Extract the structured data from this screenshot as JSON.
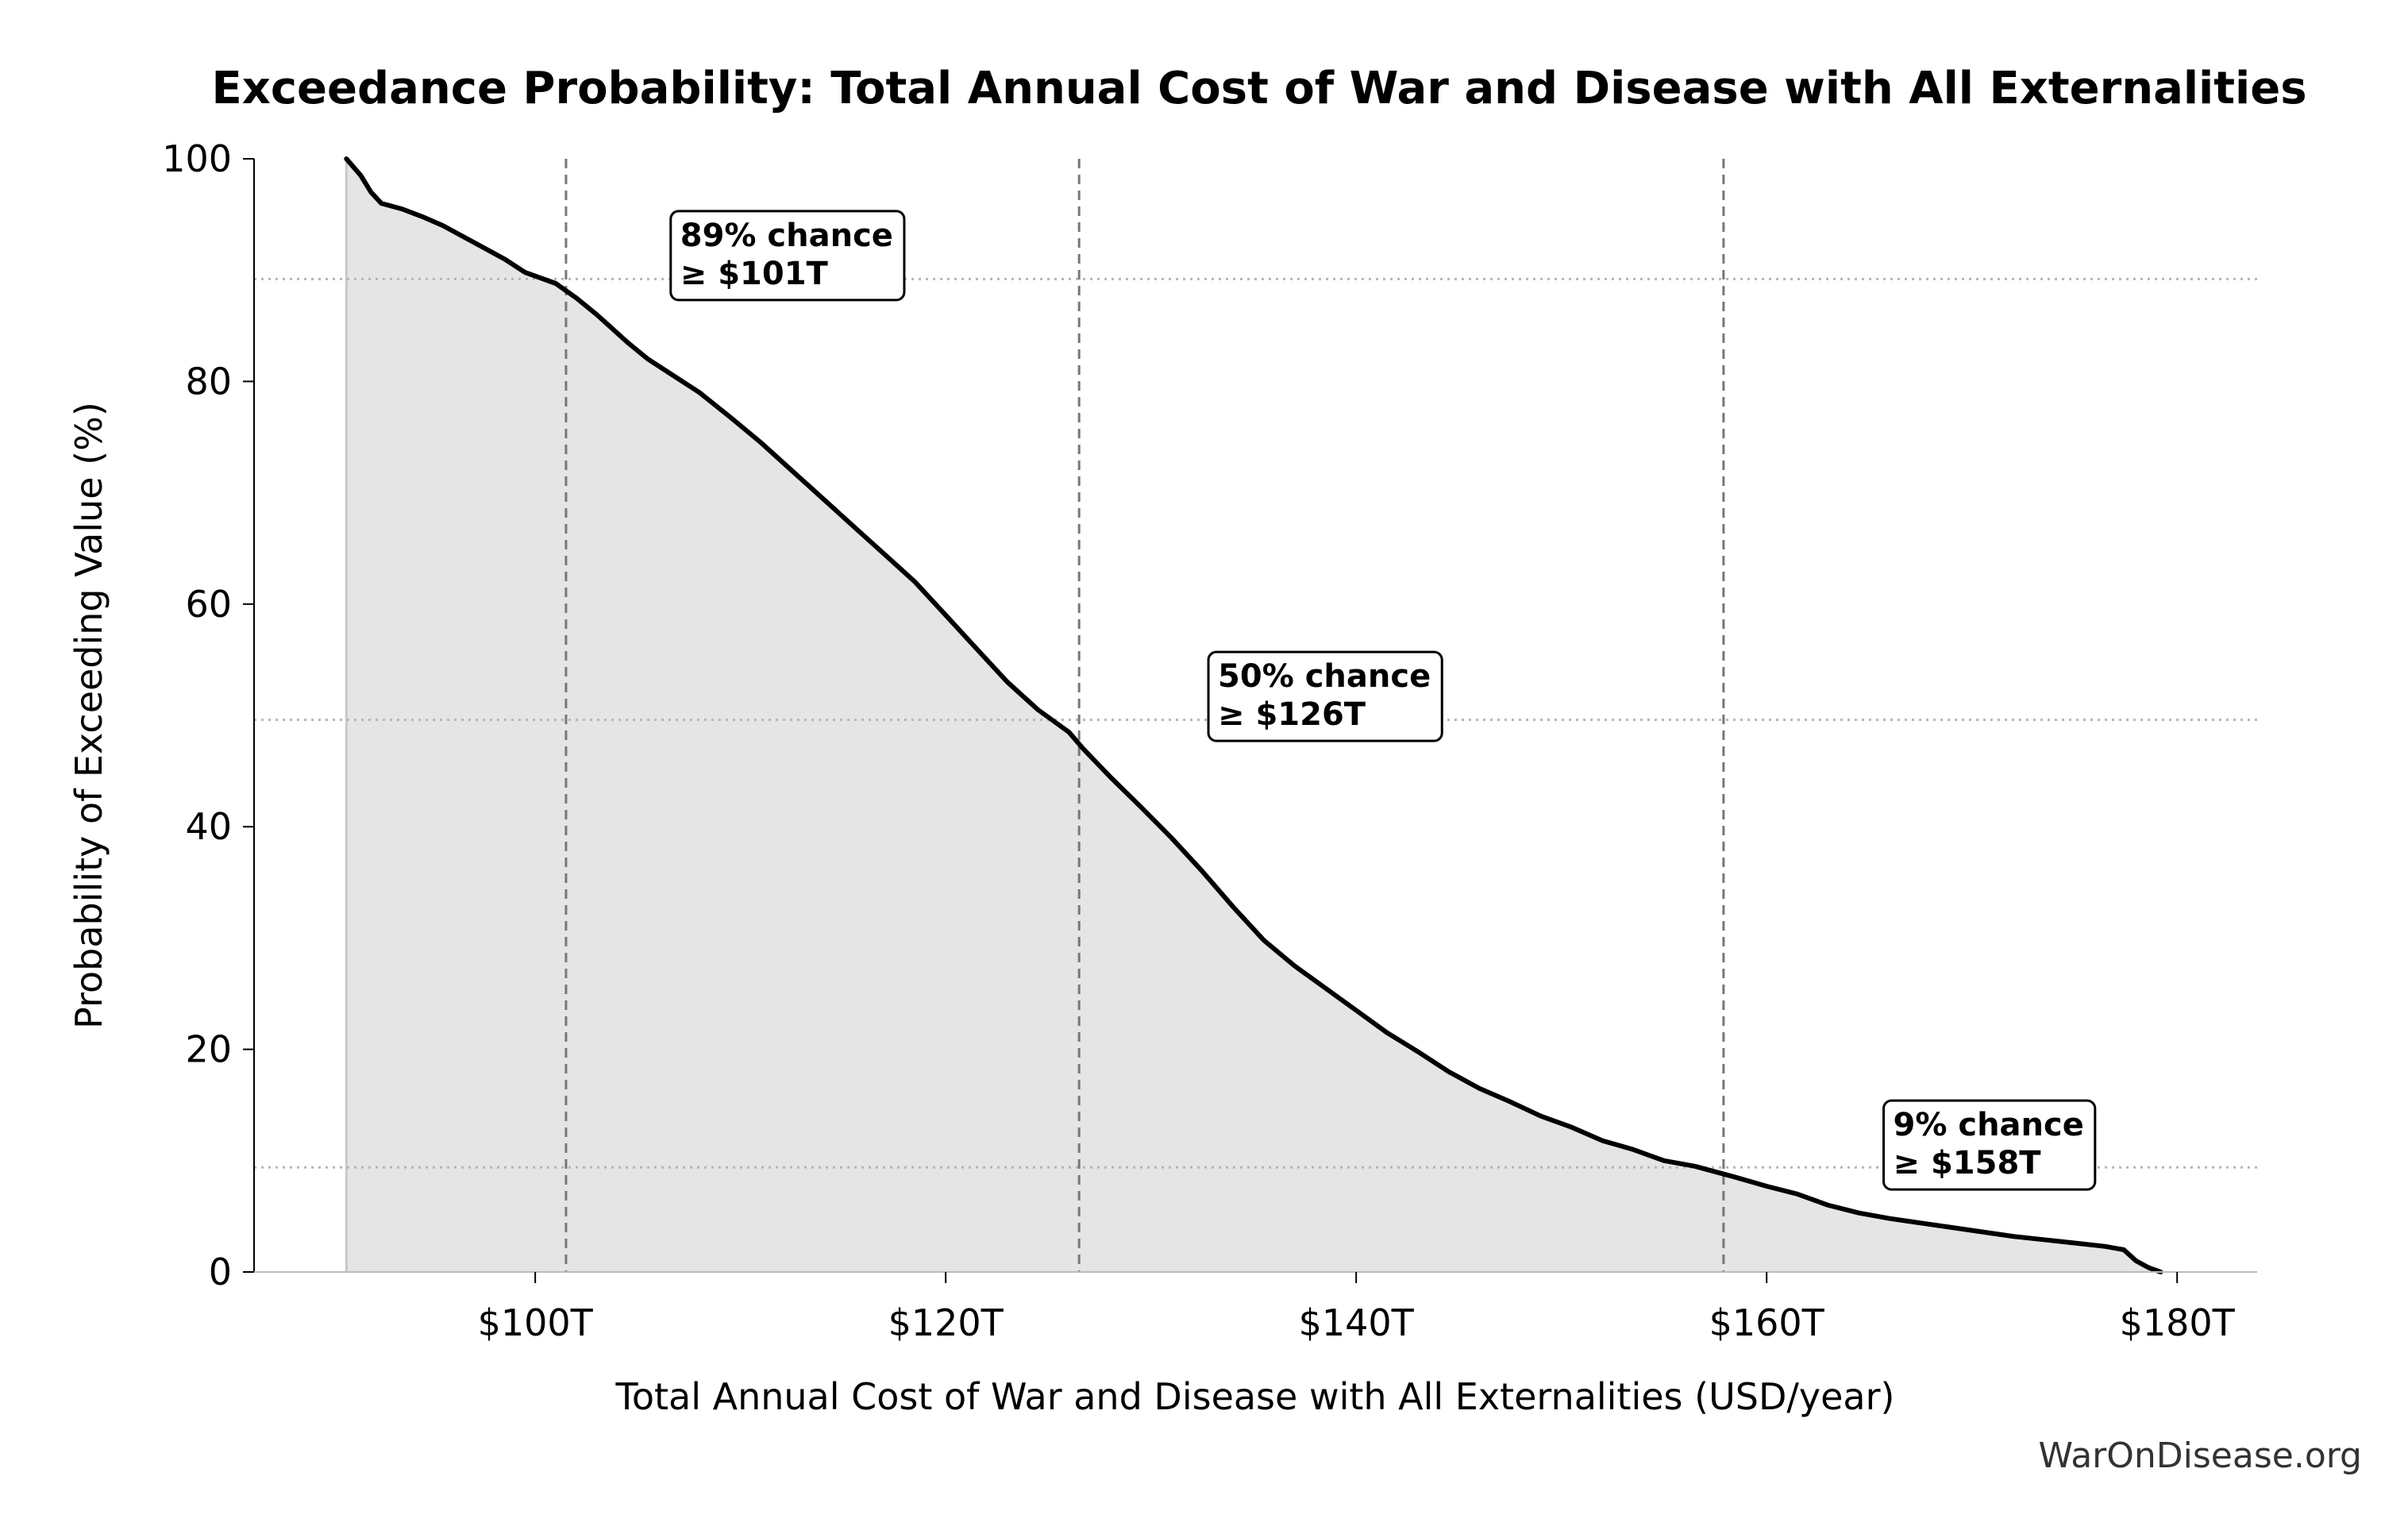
{
  "chart_data": {
    "type": "area",
    "title": "Exceedance Probability: Total Annual Cost of War and Disease with All Externalities",
    "xlabel": "Total Annual Cost of War and Disease with All Externalities (USD/year)",
    "ylabel": "Probability of Exceeding Value (%)",
    "xlim": [
      86.3,
      183.9
    ],
    "ylim": [
      0,
      100
    ],
    "x_ticks": [
      {
        "value": 100,
        "label": "$100T"
      },
      {
        "value": 120,
        "label": "$120T"
      },
      {
        "value": 140,
        "label": "$140T"
      },
      {
        "value": 160,
        "label": "$160T"
      },
      {
        "value": 180,
        "label": "$180T"
      }
    ],
    "y_ticks": [
      {
        "value": 0,
        "label": "0"
      },
      {
        "value": 20,
        "label": "20"
      },
      {
        "value": 40,
        "label": "40"
      },
      {
        "value": 60,
        "label": "60"
      },
      {
        "value": 80,
        "label": "80"
      },
      {
        "value": 100,
        "label": "100"
      }
    ],
    "series": [
      {
        "x": [
          90.8,
          91.5,
          92.0,
          92.5,
          93.5,
          94.5,
          95.5,
          97.0,
          98.5,
          99.5,
          101.0,
          102.0,
          103.0,
          104.5,
          105.5,
          106.5,
          108.0,
          109.5,
          111.0,
          112.5,
          114.0,
          115.5,
          117.0,
          118.5,
          120.0,
          121.5,
          123.0,
          124.5,
          126.0,
          126.7,
          128.0,
          129.5,
          131.0,
          132.5,
          134.0,
          135.5,
          137.0,
          138.5,
          140.0,
          141.5,
          143.0,
          144.5,
          146.0,
          147.5,
          149.0,
          150.5,
          152.0,
          153.5,
          155.0,
          156.5,
          157.5,
          158.5,
          160.0,
          161.5,
          163.0,
          164.5,
          166.0,
          167.5,
          169.0,
          170.5,
          172.0,
          173.5,
          175.0,
          176.5,
          177.4,
          178.0,
          178.6,
          179.2
        ],
        "y": [
          100,
          98.5,
          97.0,
          96.0,
          95.5,
          94.8,
          94.0,
          92.5,
          91.0,
          89.8,
          88.8,
          87.5,
          86.0,
          83.5,
          82.0,
          80.8,
          79.0,
          76.8,
          74.5,
          72.0,
          69.5,
          67.0,
          64.5,
          62.0,
          59.0,
          56.0,
          53.0,
          50.5,
          48.5,
          47.0,
          44.5,
          41.8,
          39.0,
          36.0,
          32.8,
          29.8,
          27.5,
          25.5,
          23.5,
          21.5,
          19.8,
          18.0,
          16.5,
          15.3,
          14.0,
          13.0,
          11.8,
          11.0,
          10.0,
          9.5,
          9.0,
          8.5,
          7.7,
          7.0,
          6.0,
          5.3,
          4.8,
          4.4,
          4.0,
          3.6,
          3.2,
          2.9,
          2.6,
          2.3,
          2.0,
          1.0,
          0.4,
          0.0
        ]
      }
    ],
    "reference_lines": {
      "vertical": [
        101.5,
        126.5,
        157.9
      ],
      "horizontal": [
        89.2,
        49.6,
        9.4
      ]
    },
    "annotations": [
      {
        "line1": "89% chance",
        "line2": "≥ $101T",
        "x": 106.6,
        "y": 95.3
      },
      {
        "line1": "50% chance",
        "line2": "≥ $126T",
        "x": 132.8,
        "y": 55.7
      },
      {
        "line1": "9% chance",
        "line2": "≥ $158T",
        "x": 165.7,
        "y": 15.4
      }
    ],
    "grid": false,
    "legend": "none",
    "colors": {
      "line": "#000000",
      "fill": "#e5e5e5",
      "reference": "#777777",
      "dotted": "#b5b5b5"
    }
  },
  "footer": {
    "watermark": "WarOnDisease.org"
  }
}
